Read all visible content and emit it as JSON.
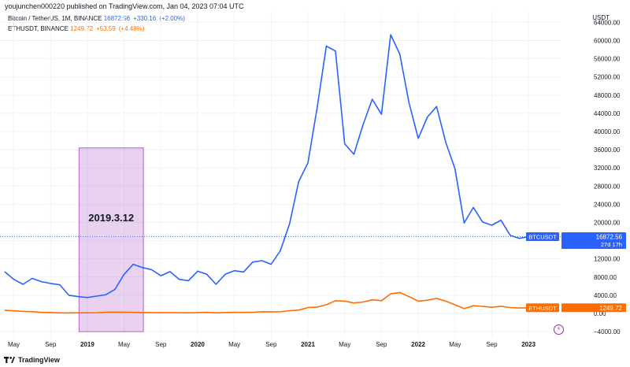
{
  "header": {
    "published_line": "youjunchen000220 published on TradingView.com, Jan 04, 2023 07:04 UTC"
  },
  "legend": {
    "btc": {
      "symbol": "Bitcoin / TetherUS, 1M, BINANCE",
      "price": "16872.56",
      "change": "+330.16",
      "change_pct": "(+2.00%)"
    },
    "eth": {
      "symbol": "ETHUSDT, BINANCE",
      "price": "1249.72",
      "change": "+53.59",
      "change_pct": "(+4.48%)"
    }
  },
  "currency_label": "USDT",
  "footer": {
    "brand": "TradingView"
  },
  "colors": {
    "btc": "#2962ff",
    "eth": "#ff6d00",
    "box": "#b05ec9"
  },
  "chart_data": {
    "type": "line",
    "title": "Bitcoin / TetherUS and ETHUSDT, 1M, BINANCE",
    "ylim": [
      -5200,
      66500
    ],
    "yticks": [
      -4000,
      0,
      4000,
      8000,
      12000,
      16000,
      20000,
      24000,
      28000,
      32000,
      36000,
      40000,
      44000,
      48000,
      52000,
      56000,
      60000,
      64000
    ],
    "ytick_labels": [
      "−4000.00",
      "0.00",
      "4000.00",
      "8000.00",
      "12000.00",
      "16000.00",
      "20000.00",
      "24000.00",
      "28000.00",
      "32000.00",
      "36000.00",
      "40000.00",
      "44000.00",
      "48000.00",
      "52000.00",
      "56000.00",
      "60000.00",
      "64000.00"
    ],
    "xlim": [
      -1.5,
      59.5
    ],
    "xticks": [
      {
        "x": 0,
        "label": "May",
        "bold": false
      },
      {
        "x": 4,
        "label": "Sep",
        "bold": false
      },
      {
        "x": 8,
        "label": "2019",
        "bold": true
      },
      {
        "x": 12,
        "label": "May",
        "bold": false
      },
      {
        "x": 16,
        "label": "Sep",
        "bold": false
      },
      {
        "x": 20,
        "label": "2020",
        "bold": true
      },
      {
        "x": 24,
        "label": "May",
        "bold": false
      },
      {
        "x": 28,
        "label": "Sep",
        "bold": false
      },
      {
        "x": 32,
        "label": "2021",
        "bold": true
      },
      {
        "x": 36,
        "label": "May",
        "bold": false
      },
      {
        "x": 40,
        "label": "Sep",
        "bold": false
      },
      {
        "x": 44,
        "label": "2022",
        "bold": true
      },
      {
        "x": 48,
        "label": "May",
        "bold": false
      },
      {
        "x": 52,
        "label": "Sep",
        "bold": false
      },
      {
        "x": 56,
        "label": "2023",
        "bold": true
      }
    ],
    "series": [
      {
        "name": "BTCUSDT",
        "color": "#2962ff",
        "x": [
          -1,
          0,
          1,
          2,
          3,
          4,
          5,
          6,
          7,
          8,
          9,
          10,
          11,
          12,
          13,
          14,
          15,
          16,
          17,
          18,
          19,
          20,
          21,
          22,
          23,
          24,
          25,
          26,
          27,
          28,
          29,
          30,
          31,
          32,
          33,
          34,
          35,
          36,
          37,
          38,
          39,
          40,
          41,
          42,
          43,
          44,
          45,
          46,
          47,
          48,
          49,
          50,
          51,
          52,
          53,
          54,
          55,
          56
        ],
        "values": [
          9200,
          7500,
          6400,
          7700,
          7000,
          6600,
          6300,
          4000,
          3700,
          3500,
          3800,
          4100,
          5300,
          8600,
          10800,
          10100,
          9600,
          8300,
          9200,
          7500,
          7200,
          9300,
          8600,
          6400,
          8600,
          9400,
          9100,
          11300,
          11600,
          10800,
          13800,
          19700,
          29000,
          33100,
          45200,
          58800,
          57700,
          37300,
          35000,
          41500,
          47100,
          43800,
          61300,
          57000,
          46300,
          38500,
          43200,
          45500,
          37600,
          31800,
          19900,
          23300,
          20100,
          19400,
          20500,
          17200,
          16500,
          16873
        ]
      },
      {
        "name": "ETHUSDT",
        "color": "#ff6d00",
        "x": [
          -1,
          0,
          1,
          2,
          3,
          4,
          5,
          6,
          7,
          8,
          9,
          10,
          11,
          12,
          13,
          14,
          15,
          16,
          17,
          18,
          19,
          20,
          21,
          22,
          23,
          24,
          25,
          26,
          27,
          28,
          29,
          30,
          31,
          32,
          33,
          34,
          35,
          36,
          37,
          38,
          39,
          40,
          41,
          42,
          43,
          44,
          45,
          46,
          47,
          48,
          49,
          50,
          51,
          52,
          53,
          54,
          55,
          56
        ],
        "values": [
          670,
          580,
          450,
          400,
          230,
          200,
          120,
          110,
          130,
          140,
          170,
          270,
          290,
          270,
          230,
          210,
          180,
          180,
          190,
          150,
          130,
          180,
          230,
          130,
          200,
          230,
          230,
          250,
          380,
          360,
          380,
          610,
          740,
          1300,
          1400,
          1900,
          2800,
          2700,
          2300,
          2500,
          3000,
          2800,
          4300,
          4600,
          3700,
          2700,
          2900,
          3300,
          2700,
          1900,
          1050,
          1700,
          1550,
          1350,
          1570,
          1300,
          1190,
          1250
        ]
      }
    ],
    "annotations": [
      {
        "type": "rectangle",
        "x_start": 7.1,
        "x_end": 14.1,
        "y_start": -4000,
        "y_end": 36400,
        "label": "2019.3.12"
      },
      {
        "type": "price_line",
        "series": "BTCUSDT",
        "value": 16872.56
      }
    ],
    "axis_badges": [
      {
        "series": "BTCUSDT",
        "name": "BTCUSDT",
        "price": "16872.56",
        "countdown": "27d 17h"
      },
      {
        "series": "ETHUSDT",
        "name": "ETHUSDT",
        "price": "1249.72"
      }
    ]
  }
}
